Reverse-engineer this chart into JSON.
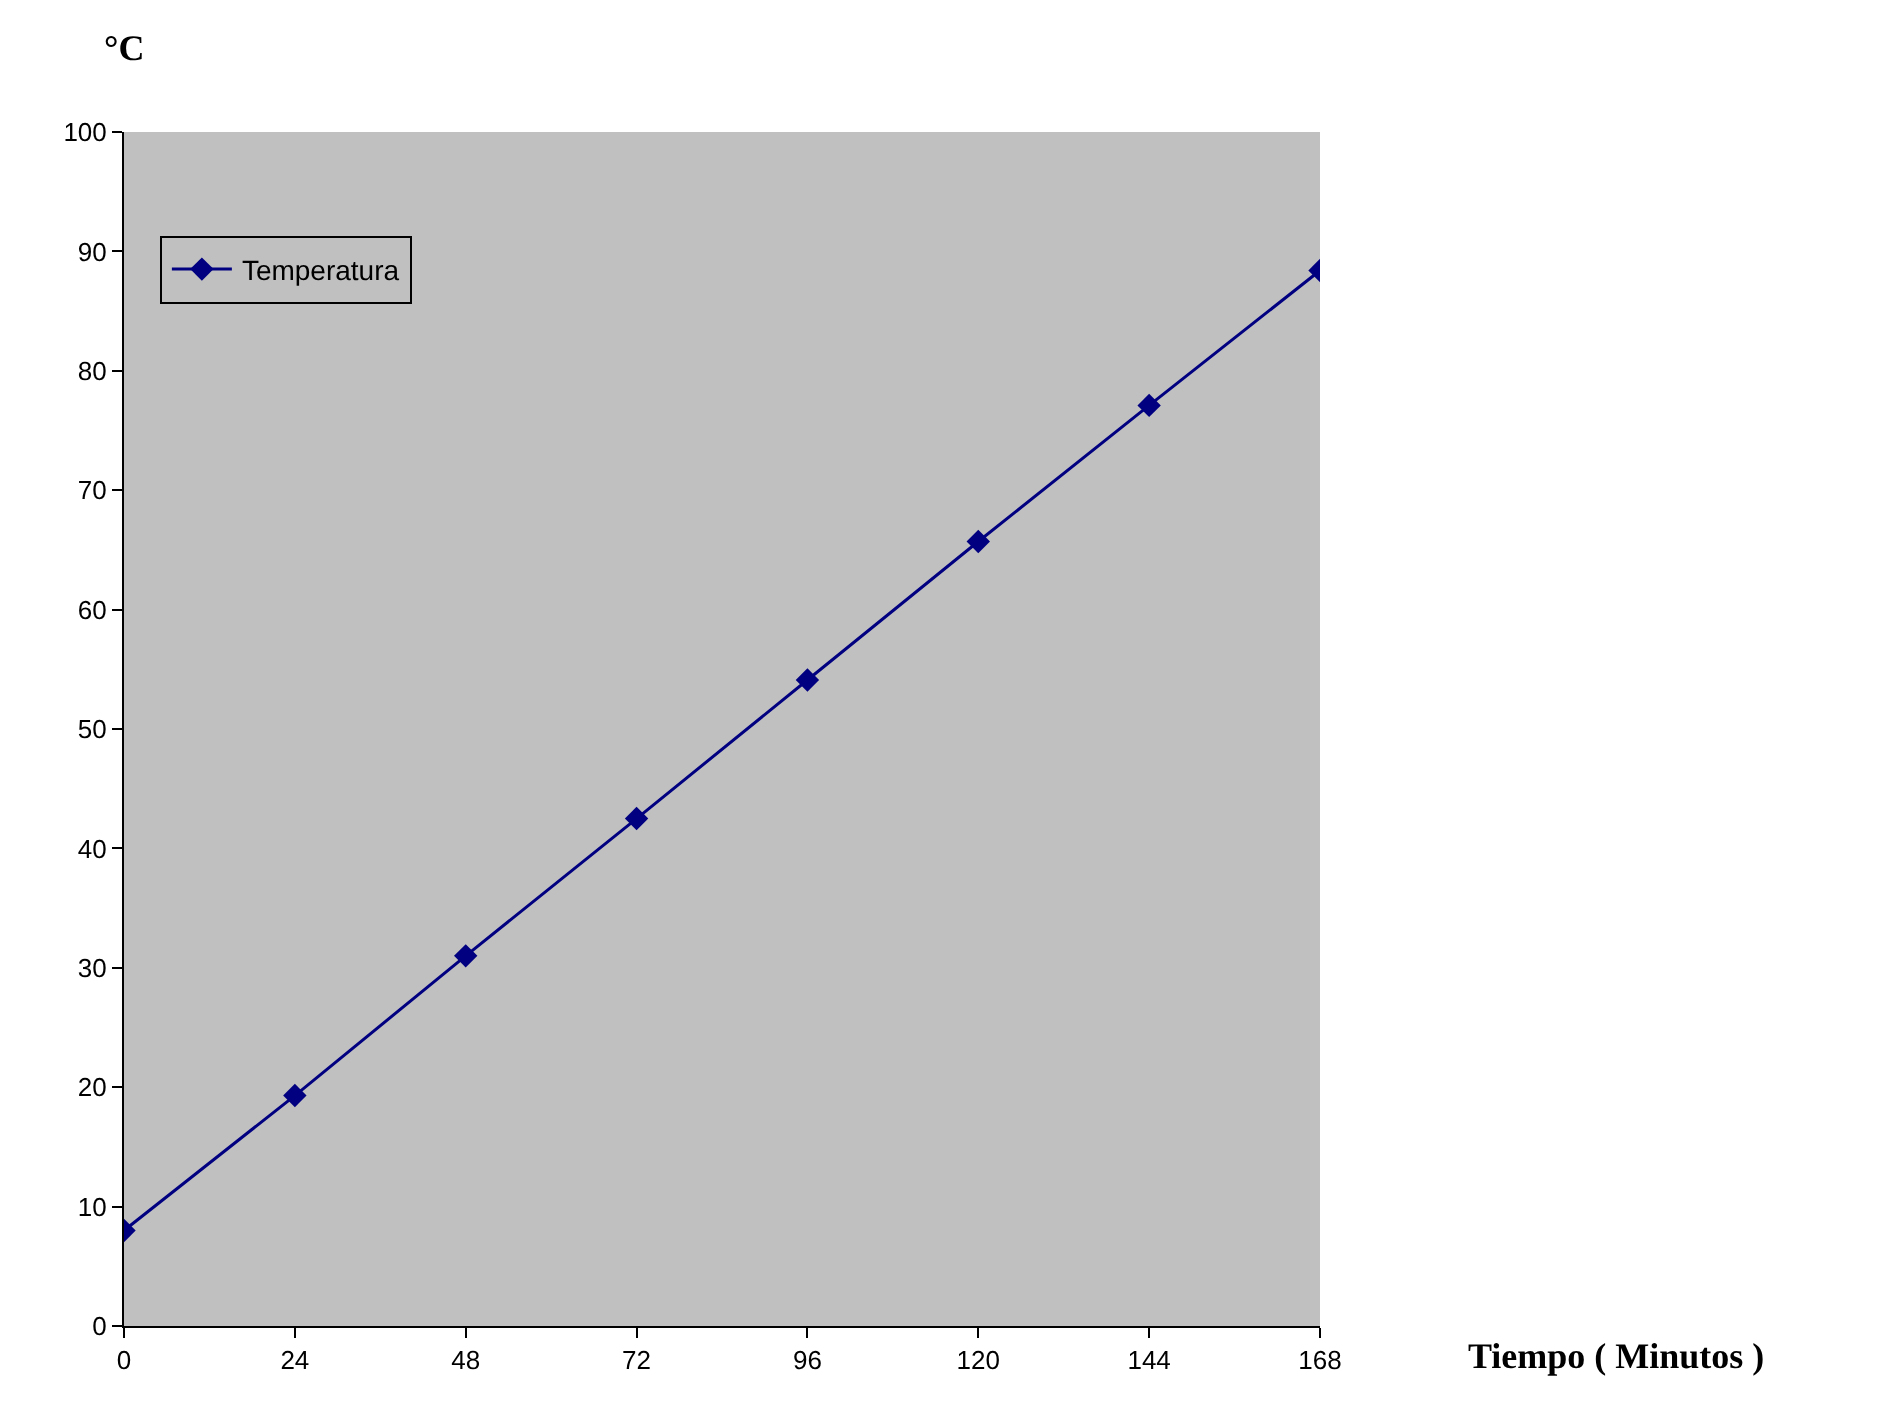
{
  "chart_data": {
    "type": "line",
    "xlabel": "Tiempo ( Minutos )",
    "ylabel": "°C",
    "x": [
      0,
      24,
      48,
      72,
      96,
      120,
      144,
      168
    ],
    "series": [
      {
        "name": "Temperatura",
        "color": "#000080",
        "values": [
          8.0,
          19.3,
          31.0,
          42.5,
          54.1,
          65.7,
          77.1,
          88.4
        ]
      }
    ],
    "xlim": [
      0,
      168
    ],
    "xticks": [
      0,
      24,
      48,
      72,
      96,
      120,
      144,
      168
    ],
    "ylim": [
      0,
      100
    ],
    "yticks": [
      0,
      10,
      20,
      30,
      40,
      50,
      60,
      70,
      80,
      90,
      100
    ],
    "grid": false,
    "legend": "top left",
    "marker": "diamond",
    "line_style": "solid"
  }
}
